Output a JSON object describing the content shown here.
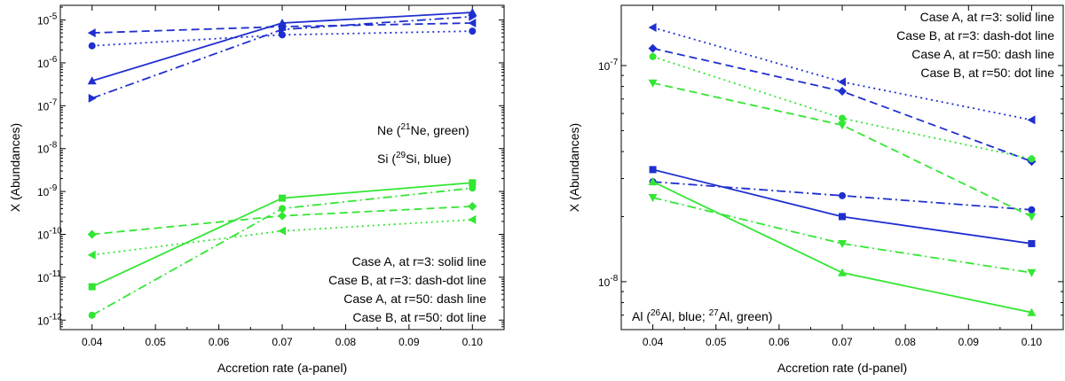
{
  "colors": {
    "blue": "#1f2fcf",
    "green": "#33e633"
  },
  "chart_data": [
    {
      "panel": "a",
      "type": "line",
      "xlabel": "Accretion rate   (a-panel)",
      "ylabel": "X   (Abundances)",
      "xlim": [
        0.035,
        0.105
      ],
      "ylim": [
        6e-13,
        2.2e-05
      ],
      "yscale": "log",
      "xticks": [
        "0.04",
        "0.05",
        "0.06",
        "0.07",
        "0.08",
        "0.09",
        "0.10"
      ],
      "yticks": [
        {
          "v": 1e-12,
          "base": "10",
          "exp": "-12"
        },
        {
          "v": 1e-11,
          "base": "10",
          "exp": "-11"
        },
        {
          "v": 1e-10,
          "base": "10",
          "exp": "-10"
        },
        {
          "v": 1e-09,
          "base": "10",
          "exp": "-9"
        },
        {
          "v": 1e-08,
          "base": "10",
          "exp": "-8"
        },
        {
          "v": 1e-07,
          "base": "10",
          "exp": "-7"
        },
        {
          "v": 1e-06,
          "base": "10",
          "exp": "-6"
        },
        {
          "v": 1e-05,
          "base": "10",
          "exp": "-5"
        }
      ],
      "x": [
        0.04,
        0.07,
        0.1
      ],
      "series": [
        {
          "color": "blue",
          "style": "solid",
          "marker": "triangle-up",
          "values": [
            3.8e-07,
            8.5e-06,
            1.5e-05
          ]
        },
        {
          "color": "blue",
          "style": "dashdot",
          "marker": "triangle-right",
          "values": [
            1.5e-07,
            6e-06,
            1.2e-05
          ]
        },
        {
          "color": "blue",
          "style": "dash",
          "marker": "triangle-left",
          "values": [
            5e-06,
            7e-06,
            8.5e-06
          ]
        },
        {
          "color": "blue",
          "style": "dot",
          "marker": "circle",
          "values": [
            2.5e-06,
            4.5e-06,
            5.5e-06
          ]
        },
        {
          "color": "green",
          "style": "solid",
          "marker": "square",
          "values": [
            6e-12,
            7e-10,
            1.6e-09
          ]
        },
        {
          "color": "green",
          "style": "dashdot",
          "marker": "circle",
          "values": [
            1.3e-12,
            4e-10,
            1.2e-09
          ]
        },
        {
          "color": "green",
          "style": "dash",
          "marker": "diamond",
          "values": [
            1e-10,
            2.7e-10,
            4.5e-10
          ]
        },
        {
          "color": "green",
          "style": "dot",
          "marker": "triangle-left",
          "values": [
            3.3e-11,
            1.2e-10,
            2.2e-10
          ]
        }
      ],
      "legend": [
        "Case A, at r=3:  solid line",
        "Case B, at r=3:  dash-dot line",
        "Case A, at r=50:  dash line",
        "Case B, at r=50:  dot line"
      ],
      "annotations": [
        {
          "pre": "Ne (",
          "sup": "21",
          "post": "Ne, green)"
        },
        {
          "pre": "Si (",
          "sup": "29",
          "post": "Si, blue)"
        }
      ]
    },
    {
      "panel": "d",
      "type": "line",
      "xlabel": "Accretion rate   (d-panel)",
      "ylabel": "X   (Abundances)",
      "xlim": [
        0.035,
        0.105
      ],
      "ylim": [
        6e-09,
        1.9e-07
      ],
      "yscale": "log",
      "xticks": [
        "0.04",
        "0.05",
        "0.06",
        "0.07",
        "0.08",
        "0.09",
        "0.10"
      ],
      "yticks": [
        {
          "v": 1e-08,
          "base": "10",
          "exp": "-8"
        },
        {
          "v": 1e-07,
          "base": "10",
          "exp": "-7"
        }
      ],
      "x": [
        0.04,
        0.07,
        0.1
      ],
      "series": [
        {
          "color": "blue",
          "style": "solid",
          "marker": "square",
          "values": [
            3.3e-08,
            2e-08,
            1.5e-08
          ]
        },
        {
          "color": "blue",
          "style": "dashdot",
          "marker": "circle",
          "values": [
            2.9e-08,
            2.5e-08,
            2.15e-08
          ]
        },
        {
          "color": "blue",
          "style": "dash",
          "marker": "diamond",
          "values": [
            1.2e-07,
            7.6e-08,
            3.6e-08
          ]
        },
        {
          "color": "blue",
          "style": "dot",
          "marker": "triangle-left",
          "values": [
            1.5e-07,
            8.4e-08,
            5.6e-08
          ]
        },
        {
          "color": "green",
          "style": "solid",
          "marker": "triangle-up",
          "values": [
            2.9e-08,
            1.1e-08,
            7.2e-09
          ]
        },
        {
          "color": "green",
          "style": "dashdot",
          "marker": "triangle-down",
          "values": [
            2.45e-08,
            1.5e-08,
            1.1e-08
          ]
        },
        {
          "color": "green",
          "style": "dash",
          "marker": "triangle-down",
          "values": [
            8.3e-08,
            5.3e-08,
            2e-08
          ]
        },
        {
          "color": "green",
          "style": "dot",
          "marker": "circle",
          "values": [
            1.1e-07,
            5.7e-08,
            3.7e-08
          ]
        }
      ],
      "legend": [
        "Case A, at r=3:  solid line",
        "Case B, at r=3:  dash-dot line",
        "Case A, at r=50:  dash line",
        "Case B, at r=50:  dot line"
      ],
      "annotations": [
        {
          "pre": "Al (",
          "sup": "26",
          "mid": "Al, blue; ",
          "sup2": "27",
          "post": "Al, green)"
        }
      ]
    }
  ]
}
